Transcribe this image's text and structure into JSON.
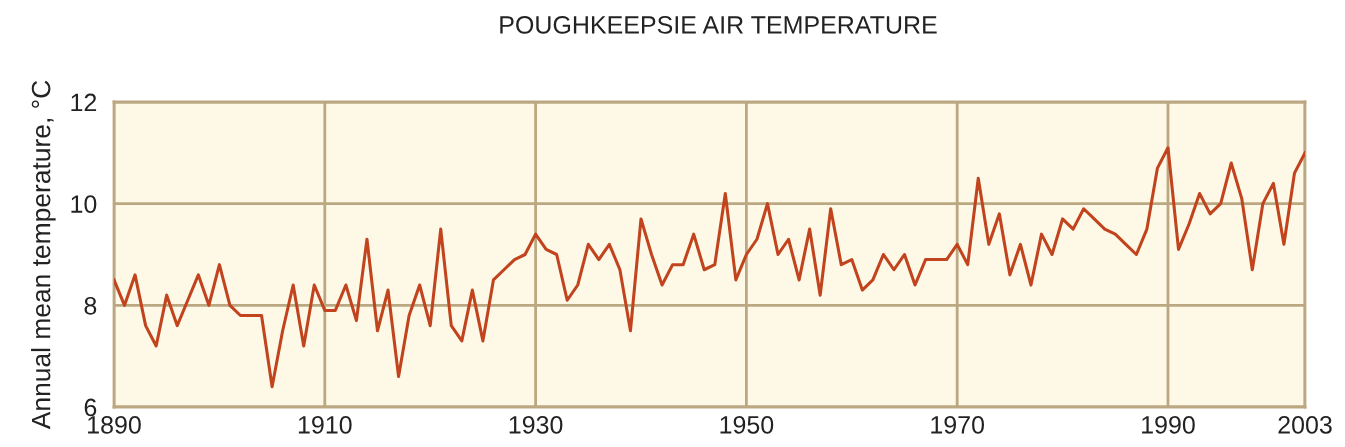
{
  "chart_data": {
    "type": "line",
    "title": "POUGHKEEPSIE AIR TEMPERATURE",
    "ylabel": "Annual mean temperature, °C",
    "x": [
      1890,
      1891,
      1892,
      1893,
      1894,
      1895,
      1896,
      1897,
      1898,
      1899,
      1900,
      1901,
      1902,
      1903,
      1904,
      1905,
      1906,
      1907,
      1908,
      1909,
      1910,
      1911,
      1912,
      1913,
      1914,
      1915,
      1916,
      1917,
      1918,
      1919,
      1920,
      1921,
      1922,
      1923,
      1924,
      1925,
      1926,
      1927,
      1928,
      1929,
      1930,
      1931,
      1932,
      1933,
      1934,
      1935,
      1936,
      1937,
      1938,
      1939,
      1940,
      1941,
      1942,
      1943,
      1944,
      1945,
      1946,
      1947,
      1948,
      1949,
      1950,
      1951,
      1952,
      1953,
      1954,
      1955,
      1956,
      1957,
      1958,
      1959,
      1960,
      1961,
      1962,
      1963,
      1964,
      1965,
      1966,
      1967,
      1968,
      1969,
      1970,
      1971,
      1972,
      1973,
      1974,
      1975,
      1976,
      1977,
      1978,
      1979,
      1980,
      1981,
      1982,
      1983,
      1984,
      1985,
      1986,
      1987,
      1988,
      1989,
      1990,
      1991,
      1992,
      1993,
      1994,
      1995,
      1996,
      1997,
      1998,
      1999,
      2000,
      2001,
      2002,
      2003
    ],
    "series": [
      {
        "color": "#c1441e",
        "values": [
          8.5,
          8.0,
          8.6,
          7.6,
          7.2,
          8.2,
          7.6,
          8.1,
          8.6,
          8.0,
          8.8,
          8.0,
          7.8,
          7.8,
          7.8,
          6.4,
          7.5,
          8.4,
          7.2,
          8.4,
          7.9,
          7.9,
          8.4,
          7.7,
          9.3,
          7.5,
          8.3,
          6.6,
          7.8,
          8.4,
          7.6,
          9.5,
          7.6,
          7.3,
          8.3,
          7.3,
          8.5,
          8.7,
          8.9,
          9.0,
          9.4,
          9.1,
          9.0,
          8.1,
          8.4,
          9.2,
          8.9,
          9.2,
          8.7,
          7.5,
          9.7,
          9.0,
          8.4,
          8.8,
          8.8,
          9.4,
          8.7,
          8.8,
          10.2,
          8.5,
          9.0,
          9.3,
          10.0,
          9.0,
          9.3,
          8.5,
          9.5,
          8.2,
          9.9,
          8.8,
          8.9,
          8.3,
          8.5,
          9.0,
          8.7,
          9.0,
          8.4,
          8.9,
          8.9,
          8.9,
          9.2,
          8.8,
          10.5,
          9.2,
          9.8,
          8.6,
          9.2,
          8.4,
          9.4,
          9.0,
          9.7,
          9.5,
          9.9,
          9.7,
          9.5,
          9.4,
          9.2,
          9.0,
          9.5,
          10.7,
          11.1,
          9.1,
          9.6,
          10.2,
          9.8,
          10.0,
          10.8,
          10.1,
          8.7,
          10.0,
          10.4,
          9.2,
          10.6,
          11.0
        ]
      }
    ],
    "xlim": [
      1890,
      2003
    ],
    "xticks": [
      1890,
      1910,
      1930,
      1950,
      1970,
      1990,
      2003
    ],
    "ylim": [
      6,
      12
    ],
    "yticks": [
      6,
      8,
      10,
      12
    ],
    "grid": true,
    "marker": "none",
    "line_style": "solid"
  }
}
